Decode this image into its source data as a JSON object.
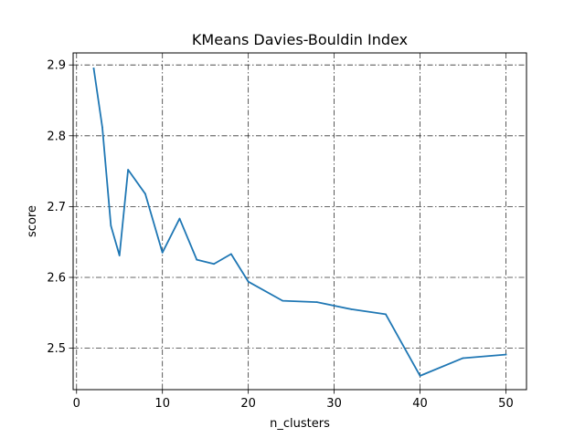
{
  "chart_data": {
    "type": "line",
    "title": "KMeans Davies-Bouldin Index",
    "xlabel": "n_clusters",
    "ylabel": "score",
    "xlim": [
      -0.4,
      52.4
    ],
    "ylim": [
      2.4415,
      2.917
    ],
    "xticks": [
      0,
      10,
      20,
      30,
      40,
      50
    ],
    "yticks": [
      2.5,
      2.6,
      2.7,
      2.8,
      2.9
    ],
    "xtick_labels": [
      "0",
      "10",
      "20",
      "30",
      "40",
      "50"
    ],
    "ytick_labels": [
      "2.5",
      "2.6",
      "2.7",
      "2.8",
      "2.9"
    ],
    "grid": true,
    "grid_style": "dash-dot",
    "series": [
      {
        "color": "#1f77b4",
        "x": [
          2,
          3,
          4,
          5,
          6,
          8,
          10,
          12,
          14,
          16,
          18,
          20,
          24,
          28,
          32,
          36,
          40,
          45,
          50
        ],
        "y": [
          2.895,
          2.812,
          2.673,
          2.631,
          2.752,
          2.718,
          2.635,
          2.683,
          2.625,
          2.619,
          2.633,
          2.594,
          2.567,
          2.565,
          2.555,
          2.548,
          2.461,
          2.486,
          2.491
        ]
      }
    ]
  }
}
